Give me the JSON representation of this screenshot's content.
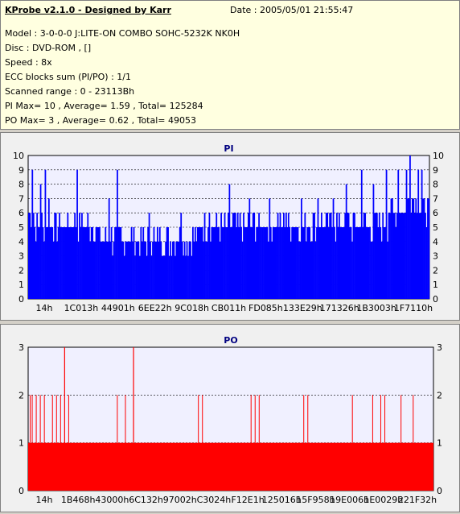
{
  "info": {
    "title": "KProbe v2.1.0 - Designed by Karr",
    "date": "Date : 2005/05/01 21:55:47",
    "lines": [
      "Model : 3-0-0-0 J:LITE-ON COMBO SOHC-5232K NK0H",
      "Disc : DVD-ROM ,  []",
      "Speed : 8x",
      "ECC blocks sum (PI/PO) : 1/1",
      "Scanned range : 0 - 23113Bh",
      "PI Max= 10 , Average= 1.59 , Total= 125284",
      "PO Max= 3 , Average= 0.62 , Total= 49053"
    ]
  },
  "chart_data": [
    {
      "type": "bar",
      "title": "PI",
      "ylim": [
        0,
        10
      ],
      "yticks": [
        "0",
        "1",
        "2",
        "3",
        "4",
        "5",
        "6",
        "7",
        "8",
        "9",
        "10"
      ],
      "xticks": [
        "14h",
        "1C013h",
        "44901h",
        "6EE22h",
        "9C018h",
        "CB011h",
        "FD085h",
        "133E29h",
        "171326h",
        "1B3003h",
        "1F7110h"
      ],
      "color": "#0000ff",
      "baseline": [
        6,
        5,
        5,
        5,
        5,
        5,
        5,
        5,
        5,
        5,
        5,
        5,
        4,
        4,
        4,
        4,
        4,
        4,
        4,
        4,
        4,
        4,
        4,
        4,
        4,
        4,
        4,
        4,
        4,
        5,
        5,
        5,
        5,
        5,
        5,
        5,
        5,
        5,
        5,
        5,
        5,
        5,
        5,
        5,
        5,
        5,
        5,
        5,
        5,
        5,
        5,
        5,
        5,
        5,
        5,
        5,
        5,
        5,
        5,
        5,
        5,
        6,
        6,
        6,
        7,
        7,
        6,
        6
      ],
      "peaks": [
        [
          0.01,
          9
        ],
        [
          0.03,
          8
        ],
        [
          0.04,
          9
        ],
        [
          0.05,
          7
        ],
        [
          0.12,
          9
        ],
        [
          0.2,
          7
        ],
        [
          0.22,
          9
        ],
        [
          0.3,
          6
        ],
        [
          0.38,
          6
        ],
        [
          0.45,
          6
        ],
        [
          0.5,
          8
        ],
        [
          0.55,
          7
        ],
        [
          0.6,
          7
        ],
        [
          0.64,
          6
        ],
        [
          0.68,
          7
        ],
        [
          0.72,
          7
        ],
        [
          0.76,
          7
        ],
        [
          0.79,
          8
        ],
        [
          0.83,
          9
        ],
        [
          0.86,
          8
        ],
        [
          0.89,
          9
        ],
        [
          0.92,
          9
        ],
        [
          0.94,
          9
        ],
        [
          0.95,
          10
        ],
        [
          0.97,
          9
        ],
        [
          0.98,
          9
        ]
      ]
    },
    {
      "type": "bar",
      "title": "PO",
      "ylim": [
        0,
        3
      ],
      "yticks": [
        "0",
        "1",
        "2",
        "3"
      ],
      "xticks": [
        "14h",
        "1B468h",
        "43000h",
        "6C132h",
        "97002h",
        "C3024h",
        "F12E1h",
        "125016h",
        "15F958h",
        "19E006h",
        "1E0029h",
        "221F32h"
      ],
      "color": "#ff0000",
      "baseline_value": 1,
      "spikes2": [
        0.005,
        0.01,
        0.02,
        0.03,
        0.04,
        0.06,
        0.07,
        0.08,
        0.1,
        0.22,
        0.24,
        0.42,
        0.43,
        0.55,
        0.56,
        0.57,
        0.68,
        0.69,
        0.8,
        0.85,
        0.87,
        0.88,
        0.92,
        0.95
      ],
      "spikes3": [
        0.09,
        0.26
      ]
    }
  ]
}
